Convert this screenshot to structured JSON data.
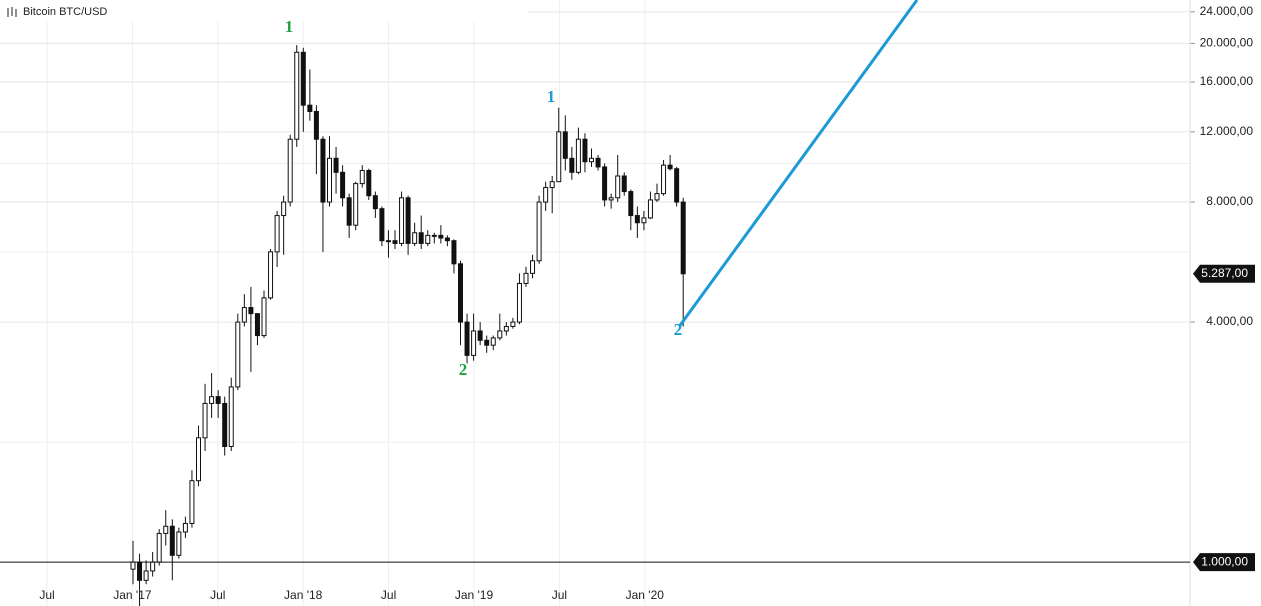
{
  "chart_data": {
    "type": "candlestick",
    "title": "Bitcoin BTC/USD",
    "x_labels": [
      "Jul",
      "Jan '17",
      "Jul",
      "Jan '18",
      "Jul",
      "Jan '19",
      "Jul",
      "Jan '20"
    ],
    "open": [
      960,
      1000,
      900,
      950,
      1000,
      1180,
      1230,
      1040,
      1190,
      1250,
      1600,
      2050,
      2500,
      2600,
      2500,
      1950,
      2750,
      4000,
      4350,
      4200,
      3700,
      4600,
      6000,
      7400,
      8000,
      11500,
      19000,
      14000,
      13500,
      11500,
      8000,
      10300,
      9500,
      8200,
      7000,
      8900,
      9600,
      8300,
      7700,
      6400,
      6400,
      6300,
      8200,
      6300,
      6700,
      6300,
      6600,
      6600,
      6500,
      6400,
      5600,
      4000,
      3300,
      3800,
      3600,
      3500,
      3650,
      3800,
      3900,
      4000,
      5000,
      5300,
      5700,
      8000,
      8700,
      9000,
      12000,
      10300,
      9500,
      11500,
      10100,
      10300,
      9800,
      8100,
      8200,
      9300,
      8500,
      7400,
      7100,
      7300,
      8100,
      8400,
      9900,
      9700,
      8000
    ],
    "high": [
      1130,
      1050,
      1010,
      1060,
      1210,
      1350,
      1280,
      1220,
      1300,
      1700,
      2200,
      2800,
      2980,
      2700,
      2600,
      2900,
      4200,
      4700,
      4900,
      4200,
      4800,
      6100,
      7600,
      8300,
      11800,
      19800,
      19500,
      17200,
      14000,
      11700,
      11700,
      11000,
      9900,
      8400,
      9000,
      9900,
      9700,
      8500,
      7800,
      6800,
      6800,
      8500,
      8300,
      7100,
      7400,
      6800,
      6700,
      7000,
      6600,
      6450,
      5700,
      4200,
      4200,
      4000,
      3700,
      3700,
      4200,
      4000,
      4100,
      5300,
      5500,
      5900,
      8300,
      9000,
      9300,
      13800,
      13200,
      11000,
      12300,
      11900,
      10900,
      10500,
      10000,
      8400,
      10500,
      9500,
      8600,
      7800,
      7600,
      8500,
      8900,
      10200,
      10500,
      9800,
      8200
    ],
    "low": [
      880,
      760,
      880,
      920,
      980,
      1100,
      900,
      1020,
      1150,
      1220,
      1550,
      1900,
      2300,
      2300,
      1850,
      1900,
      2700,
      3900,
      3000,
      3500,
      3650,
      4550,
      5500,
      5900,
      7800,
      11000,
      12000,
      12800,
      9400,
      6000,
      7800,
      8400,
      7800,
      6500,
      6800,
      8700,
      8100,
      7300,
      6200,
      5800,
      6100,
      6200,
      5900,
      6200,
      6100,
      6200,
      6300,
      6300,
      6200,
      5300,
      3500,
      3150,
      3200,
      3500,
      3350,
      3400,
      3600,
      3700,
      3850,
      3950,
      4900,
      5150,
      5600,
      7600,
      7500,
      9000,
      9600,
      9100,
      9400,
      9500,
      9800,
      9600,
      7800,
      7700,
      8000,
      8300,
      6800,
      6500,
      6800,
      7250,
      8000,
      8300,
      9600,
      7800,
      3900
    ],
    "close": [
      1000,
      900,
      950,
      1000,
      1180,
      1230,
      1040,
      1190,
      1250,
      1600,
      2050,
      2500,
      2600,
      2500,
      1950,
      2750,
      4000,
      4350,
      4200,
      3700,
      4600,
      6000,
      7400,
      8000,
      11500,
      19000,
      14000,
      13500,
      11500,
      8000,
      10300,
      9500,
      8200,
      7000,
      8900,
      9600,
      8300,
      7700,
      6400,
      6400,
      6300,
      8200,
      6300,
      6700,
      6300,
      6600,
      6600,
      6500,
      6400,
      5600,
      4000,
      3300,
      3800,
      3600,
      3500,
      3650,
      3800,
      3900,
      4000,
      5000,
      5300,
      5700,
      8000,
      8700,
      9000,
      12000,
      10300,
      9500,
      11500,
      10100,
      10300,
      9800,
      8100,
      8200,
      9300,
      8500,
      7400,
      7100,
      7300,
      8100,
      8400,
      9900,
      9700,
      8000,
      5287
    ],
    "ylim": [
      776,
      25700
    ],
    "log_scale": true,
    "grid": true,
    "yticks": [
      {
        "value": 4000,
        "label": "4.000,00"
      },
      {
        "value": 8000,
        "label": "8.000,00"
      },
      {
        "value": 12000,
        "label": "12.000,00"
      },
      {
        "value": 16000,
        "label": "16.000,00"
      },
      {
        "value": 20000,
        "label": "20.000,00"
      },
      {
        "value": 24000,
        "label": "24.000,00"
      }
    ],
    "minor_gridlines": [
      2000,
      6000,
      10000
    ],
    "hline": {
      "value": 1000,
      "label": "1.000,00"
    },
    "last_price": {
      "value": 5287,
      "label": "5.287,00"
    },
    "annotations": [
      {
        "text": "1",
        "color": "#22a045"
      },
      {
        "text": "2",
        "color": "#22a045"
      },
      {
        "text": "1",
        "color": "#1b9ad6"
      },
      {
        "text": "2",
        "color": "#1b9ad6"
      }
    ],
    "projection": {
      "color": "#1b9ad6",
      "values": [
        3900,
        25700
      ]
    }
  }
}
